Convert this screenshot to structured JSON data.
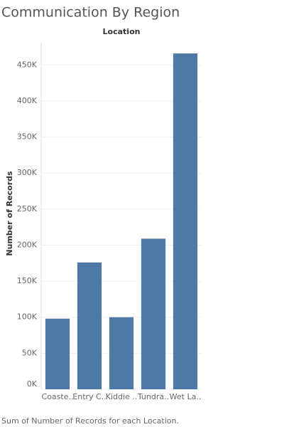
{
  "chart_data": {
    "type": "bar",
    "title": "Communication By Region",
    "header": "Location",
    "y_label": "Number of Records",
    "footer": "Sum of Number of Records for each Location.",
    "categories": [
      "Coaste..",
      "Entry C..",
      "Kiddie ..",
      "Tundra..",
      "Wet La.."
    ],
    "values": [
      98000,
      176000,
      100000,
      209000,
      466000
    ],
    "color": "#4e79a7",
    "ylim": [
      0,
      475000
    ],
    "yticks": [
      {
        "value": 0,
        "label": "0K"
      },
      {
        "value": 50000,
        "label": "50K"
      },
      {
        "value": 100000,
        "label": "100K"
      },
      {
        "value": 150000,
        "label": "150K"
      },
      {
        "value": 200000,
        "label": "200K"
      },
      {
        "value": 250000,
        "label": "250K"
      },
      {
        "value": 300000,
        "label": "300K"
      },
      {
        "value": 350000,
        "label": "350K"
      },
      {
        "value": 400000,
        "label": "400K"
      },
      {
        "value": 450000,
        "label": "450K"
      }
    ],
    "grid": true
  }
}
